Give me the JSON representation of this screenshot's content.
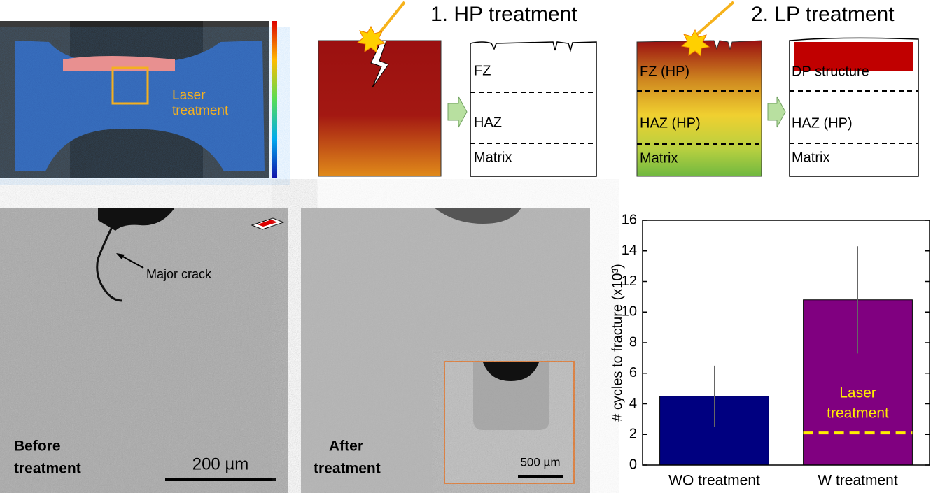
{
  "panel_a": {
    "annotation": [
      "Laser",
      "treatment"
    ]
  },
  "hp": {
    "title": "1. HP treatment",
    "layers": [
      "FZ",
      "HAZ",
      "Matrix"
    ]
  },
  "lp": {
    "title": "2. LP treatment",
    "before_layers": [
      "FZ (HP)",
      "HAZ (HP)",
      "Matrix"
    ],
    "after_layers": [
      "DP structure",
      "HAZ (HP)",
      "Matrix"
    ]
  },
  "micrographs": {
    "before": {
      "label": [
        "Before",
        "treatment"
      ],
      "annotation": "Major crack",
      "scale_bar": "200 µm"
    },
    "after": {
      "label": [
        "After",
        "treatment"
      ],
      "inset_scale_bar": "500 µm"
    }
  },
  "chart_data": {
    "type": "bar",
    "y_label": "# cycles to fracture (x10³)",
    "categories": [
      "WO treatment",
      "W treatment"
    ],
    "values": [
      4.5,
      10.8
    ],
    "errors": [
      2.0,
      3.5
    ],
    "colors": [
      "#000080",
      "#800080"
    ],
    "ylim": [
      0,
      16
    ],
    "yticks": [
      0,
      2,
      4,
      6,
      8,
      10,
      12,
      14,
      16
    ],
    "reference_line": 2.1,
    "reference_color": "#ffee00",
    "annotation": [
      "Laser",
      "treatment"
    ]
  }
}
